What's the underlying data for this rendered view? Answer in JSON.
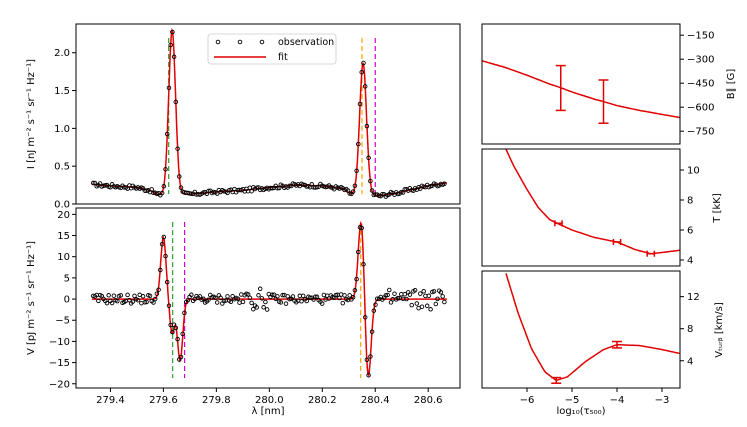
{
  "chart_data": [
    {
      "id": "intensity",
      "type": "line",
      "ylabel": "I  [nJ m⁻² s⁻¹ sr⁻¹ Hz⁻¹]",
      "xlim": [
        279.27,
        280.72
      ],
      "ylim": [
        0,
        2.38
      ],
      "yticks": [
        0.0,
        0.5,
        1.0,
        1.5,
        2.0
      ],
      "ytick_labels": [
        "0.0",
        "0.5",
        "1.0",
        "1.5",
        "2.0"
      ],
      "legend": {
        "position": "top-center",
        "entries": [
          {
            "label": "observation",
            "style": "markers"
          },
          {
            "label": "fit",
            "style": "line",
            "color": "#e00000"
          }
        ]
      },
      "continuum": [
        [
          279.33,
          0.26
        ],
        [
          279.4,
          0.24
        ],
        [
          279.5,
          0.22
        ],
        [
          279.55,
          0.18
        ],
        [
          279.58,
          0.12
        ],
        [
          279.7,
          0.13
        ],
        [
          279.8,
          0.16
        ],
        [
          279.9,
          0.18
        ],
        [
          280.0,
          0.22
        ],
        [
          280.1,
          0.25
        ],
        [
          280.2,
          0.24
        ],
        [
          280.28,
          0.2
        ],
        [
          280.31,
          0.13
        ],
        [
          280.42,
          0.11
        ],
        [
          280.5,
          0.16
        ],
        [
          280.6,
          0.24
        ],
        [
          280.67,
          0.28
        ]
      ],
      "peaks": [
        {
          "center": 279.633,
          "height": 2.17,
          "width": 0.013
        },
        {
          "center": 280.354,
          "height": 1.74,
          "width": 0.013
        }
      ],
      "vertical_lines": [
        {
          "x": 279.62,
          "color": "#2ca02c"
        },
        {
          "x": 280.35,
          "color": "#ffa500"
        },
        {
          "x": 280.4,
          "color": "#d400d4"
        }
      ]
    },
    {
      "id": "stokes_v",
      "type": "line",
      "xlabel": "λ [nm]",
      "ylabel": "V  [pJ m⁻² s⁻¹ sr⁻¹ Hz⁻¹]",
      "xlim": [
        279.27,
        280.72
      ],
      "ylim": [
        -21,
        21.5
      ],
      "xticks": [
        279.4,
        279.6,
        279.8,
        280.0,
        280.2,
        280.4,
        280.6
      ],
      "xtick_labels": [
        "279.4",
        "279.6",
        "279.8",
        "280.0",
        "280.2",
        "280.4",
        "280.6"
      ],
      "yticks": [
        -20,
        -15,
        -10,
        -5,
        0,
        5,
        10,
        15,
        20
      ],
      "ytick_labels": [
        "−20",
        "−15",
        "−10",
        "−5",
        "0",
        "5",
        "10",
        "15",
        "20"
      ],
      "lobes": [
        {
          "center": 279.6,
          "amplitude": 14.5,
          "width": 0.01
        },
        {
          "center": 279.633,
          "amplitude": -8,
          "width": 0.009
        },
        {
          "center": 279.663,
          "amplitude": -14.5,
          "width": 0.01
        },
        {
          "center": 280.347,
          "amplitude": 19,
          "width": 0.011
        },
        {
          "center": 280.373,
          "amplitude": -19,
          "width": 0.011
        }
      ],
      "vertical_lines": [
        {
          "x": 279.635,
          "color": "#2ca02c"
        },
        {
          "x": 279.68,
          "color": "#d400d4"
        },
        {
          "x": 280.345,
          "color": "#ffa500"
        }
      ]
    },
    {
      "id": "field",
      "type": "line",
      "ylabel": "B∥ [G]",
      "xlim": [
        -7,
        -2.6
      ],
      "ylim": [
        -830,
        -80
      ],
      "yticks": [
        -150,
        -300,
        -450,
        -600,
        -750
      ],
      "ytick_labels": [
        "−150",
        "−300",
        "−450",
        "−600",
        "−750"
      ],
      "curve": [
        [
          -7,
          -310
        ],
        [
          -6.5,
          -350
        ],
        [
          -6,
          -400
        ],
        [
          -5.5,
          -455
        ],
        [
          -5.25,
          -478
        ],
        [
          -5,
          -505
        ],
        [
          -4.5,
          -550
        ],
        [
          -4.3,
          -565
        ],
        [
          -4,
          -590
        ],
        [
          -3.5,
          -620
        ],
        [
          -3,
          -645
        ],
        [
          -2.6,
          -665
        ]
      ],
      "error_bars": [
        {
          "x": -5.25,
          "y": -478,
          "low": -620,
          "high": -340
        },
        {
          "x": -4.3,
          "y": -565,
          "low": -700,
          "high": -430
        }
      ]
    },
    {
      "id": "temperature",
      "type": "line",
      "ylabel": "T [kK]",
      "xlim": [
        -7,
        -2.6
      ],
      "ylim": [
        3.6,
        11.4
      ],
      "yticks": [
        4,
        6,
        8,
        10
      ],
      "ytick_labels": [
        "4",
        "6",
        "8",
        "10"
      ],
      "curve": [
        [
          -6.5,
          11.6
        ],
        [
          -6.3,
          10.3
        ],
        [
          -6,
          8.7
        ],
        [
          -5.75,
          7.5
        ],
        [
          -5.5,
          6.7
        ],
        [
          -5.3,
          6.4
        ],
        [
          -5,
          6.0
        ],
        [
          -4.5,
          5.5
        ],
        [
          -4,
          5.2
        ],
        [
          -3.6,
          4.7
        ],
        [
          -3.25,
          4.42
        ],
        [
          -3,
          4.5
        ],
        [
          -2.6,
          4.65
        ]
      ],
      "error_bars": [
        {
          "x": -5.3,
          "y": 6.45,
          "half_width": 0.08
        },
        {
          "x": -4.0,
          "y": 5.2,
          "half_width": 0.08
        },
        {
          "x": -3.25,
          "y": 4.42,
          "half_width": 0.08
        }
      ]
    },
    {
      "id": "turbulence",
      "type": "line",
      "xlabel": "log₁₀(τ₅₀₀)",
      "ylabel": "Vₜᵤᵣᵦ [km/s]",
      "xlim": [
        -7,
        -2.6
      ],
      "ylim": [
        0.6,
        15.2
      ],
      "xticks": [
        -6,
        -5,
        -4,
        -3
      ],
      "xtick_labels": [
        "−6",
        "−5",
        "−4",
        "−3"
      ],
      "yticks": [
        4,
        8,
        12
      ],
      "ytick_labels": [
        "4",
        "8",
        "12"
      ],
      "curve": [
        [
          -6.5,
          15.5
        ],
        [
          -6.2,
          10
        ],
        [
          -5.9,
          5.5
        ],
        [
          -5.6,
          2.6
        ],
        [
          -5.35,
          1.55
        ],
        [
          -5.1,
          2.0
        ],
        [
          -4.7,
          3.9
        ],
        [
          -4.3,
          5.4
        ],
        [
          -4.0,
          6.0
        ],
        [
          -3.5,
          5.9
        ],
        [
          -3,
          5.4
        ],
        [
          -2.6,
          4.9
        ]
      ],
      "error_bars": [
        {
          "x": -5.35,
          "y": 1.55,
          "low": 1.2,
          "high": 1.9
        },
        {
          "x": -4.0,
          "y": 6.0,
          "low": 5.6,
          "high": 6.4
        }
      ]
    }
  ]
}
